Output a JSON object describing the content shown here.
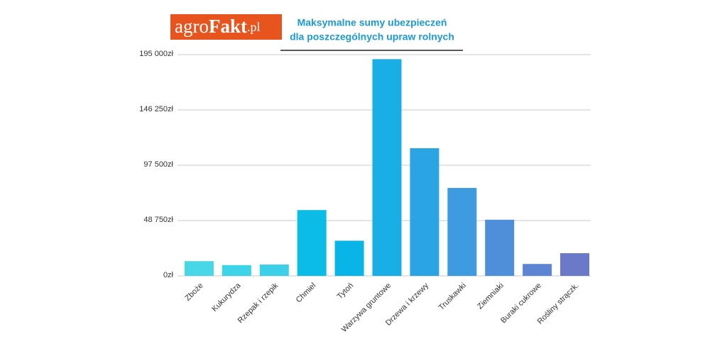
{
  "logo": {
    "parts": [
      "agro",
      "Fakt",
      ".pl"
    ]
  },
  "chart_data": {
    "type": "bar",
    "title": [
      "Maksymalne sumy ubezpieczeń",
      "dla poszczególnych upraw rolnych"
    ],
    "categories": [
      "Zboże",
      "Kukurydza",
      "Rzepak i rzepik",
      "Chmiel",
      "Tytoń",
      "Warzywa gruntowe",
      "Drzewa i krzewy",
      "Truskawki",
      "Ziemniaki",
      "Buraki cukrowe",
      "Rośliny strączk."
    ],
    "values": [
      13000,
      9500,
      10000,
      58000,
      31000,
      191000,
      112500,
      77500,
      49500,
      10500,
      20000
    ],
    "colors": [
      "#47d7e6",
      "#3dd3e8",
      "#3ccfe8",
      "#0bbde6",
      "#09b5e6",
      "#1aaee6",
      "#2ba4e3",
      "#3e9be0",
      "#4f8ed9",
      "#5e85d4",
      "#6a79c8"
    ],
    "ylim": [
      0,
      195000
    ],
    "yticks": [
      {
        "value": 0,
        "label": "0zł"
      },
      {
        "value": 48750,
        "label": "48 750zł"
      },
      {
        "value": 97500,
        "label": "97 500zł"
      },
      {
        "value": 146250,
        "label": "146 250zł"
      },
      {
        "value": 195000,
        "label": "195 000zł"
      }
    ],
    "grid": true
  }
}
